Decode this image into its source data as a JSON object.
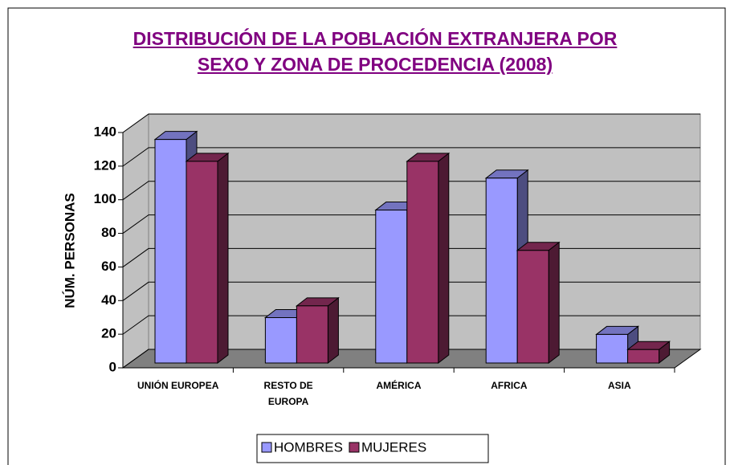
{
  "chart_data": {
    "type": "bar3d",
    "title": "DISTRIBUCIÓN DE LA POBLACIÓN EXTRANJERA POR SEXO Y ZONA DE PROCEDENCIA (2008)",
    "ylabel": "NÚM. PERSONAS",
    "categories": [
      "UNIÓN EUROPEA",
      "RESTO DE EUROPA",
      "AMÉRICA",
      "AFRICA",
      "ASIA"
    ],
    "series": [
      {
        "name": "HOMBRES",
        "color": "#9999ff",
        "values": [
          133,
          27,
          91,
          110,
          17
        ]
      },
      {
        "name": "MUJERES",
        "color": "#993366",
        "values": [
          120,
          34,
          120,
          67,
          8
        ]
      }
    ],
    "ylim": [
      0,
      140
    ],
    "yticks": [
      0,
      20,
      40,
      60,
      80,
      100,
      120,
      140
    ],
    "grid": true,
    "legend": "bottom"
  }
}
